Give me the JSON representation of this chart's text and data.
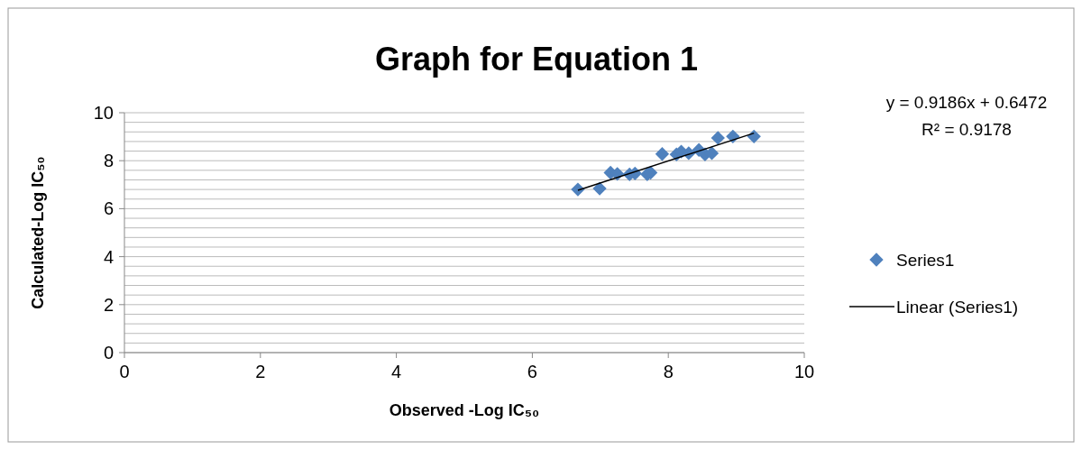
{
  "chart_data": {
    "type": "scatter",
    "title": "Graph for Equation 1",
    "xlabel": "Observed -Log IC₅₀",
    "ylabel": "Calculated-Log IC₅₀",
    "xlim": [
      0,
      10
    ],
    "xticks": [
      0,
      2,
      4,
      6,
      8,
      10
    ],
    "ylim": [
      0,
      10
    ],
    "yticks": [
      0,
      {
        "value": 0.4,
        "label": null
      },
      {
        "value": 0.8,
        "label": null
      },
      {
        "value": 1.2,
        "label": null
      },
      {
        "value": 1.6,
        "label": null
      },
      2,
      {
        "value": 2.4,
        "label": null
      },
      {
        "value": 2.8,
        "label": null
      },
      {
        "value": 3.2,
        "label": null
      },
      {
        "value": 3.6,
        "label": null
      },
      4,
      {
        "value": 4.4,
        "label": null
      },
      {
        "value": 4.8,
        "label": null
      },
      {
        "value": 5.2,
        "label": null
      },
      {
        "value": 5.6,
        "label": null
      },
      6,
      {
        "value": 6.4,
        "label": null
      },
      {
        "value": 6.8,
        "label": null
      },
      {
        "value": 7.2,
        "label": null
      },
      {
        "value": 7.6,
        "label": null
      },
      8,
      {
        "value": 8.4,
        "label": null
      },
      {
        "value": 8.8,
        "label": null
      },
      {
        "value": 9.2,
        "label": null
      },
      {
        "value": 9.6,
        "label": null
      },
      10
    ],
    "grid": "y",
    "legend": "right",
    "series": [
      {
        "name": "Series1",
        "marker": "diamond",
        "color": "#4f81bd",
        "x": [
          6.67,
          6.99,
          7.15,
          7.25,
          7.43,
          7.51,
          7.69,
          7.74,
          7.91,
          8.12,
          8.19,
          8.3,
          8.45,
          8.54,
          8.64,
          8.73,
          8.95,
          9.26
        ],
        "values": [
          6.8,
          6.84,
          7.5,
          7.45,
          7.43,
          7.47,
          7.43,
          7.5,
          8.28,
          8.26,
          8.38,
          8.31,
          8.45,
          8.26,
          8.31,
          8.95,
          9.01,
          9.01
        ]
      },
      {
        "name": "Linear (Series1)",
        "type": "line",
        "marker": "none",
        "color": "#000000",
        "x": [
          6.67,
          9.26
        ],
        "values": [
          6.77,
          9.15
        ]
      }
    ],
    "annotations": [
      "y = 0.9186x + 0.6472",
      "R² = 0.9178"
    ]
  }
}
